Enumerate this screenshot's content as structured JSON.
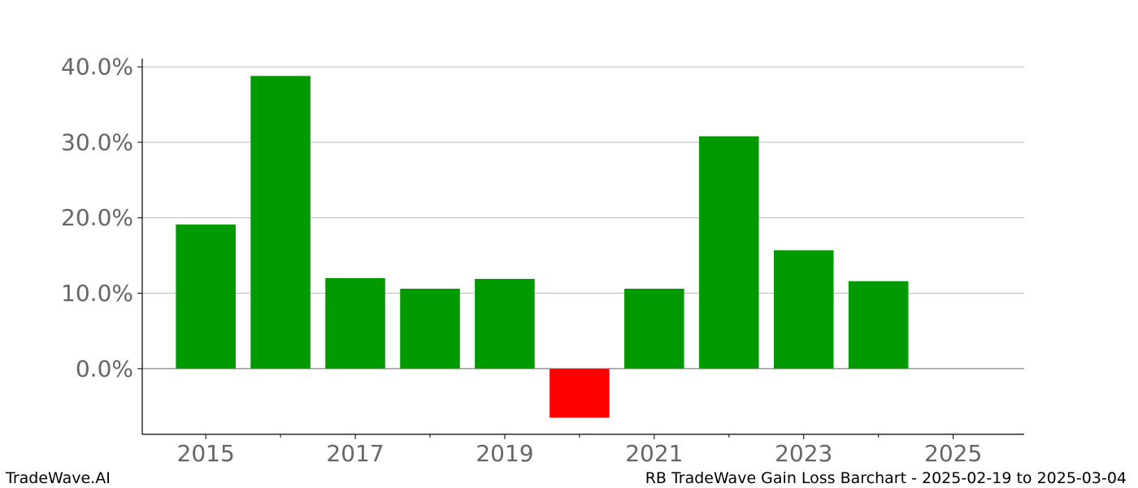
{
  "chart_data": {
    "type": "bar",
    "categories": [
      "2015",
      "2016",
      "2017",
      "2018",
      "2019",
      "2020",
      "2021",
      "2022",
      "2023",
      "2024"
    ],
    "values": [
      19.1,
      38.8,
      12.0,
      10.6,
      11.9,
      -6.5,
      10.6,
      30.8,
      15.7,
      11.6
    ],
    "x_tick_labels": [
      "2015",
      "2017",
      "2019",
      "2021",
      "2023",
      "2025"
    ],
    "x_ticks_minor": [
      "2016",
      "2018",
      "2020",
      "2022",
      "2024"
    ],
    "y_tick_labels": [
      "0.0%",
      "10.0%",
      "20.0%",
      "30.0%",
      "40.0%"
    ],
    "y_ticks": [
      0,
      10,
      20,
      30,
      40
    ],
    "ylim": [
      -8.7,
      41.1
    ],
    "xlim": [
      2014.15,
      2025.95
    ],
    "grid": true,
    "colors": {
      "positive": "#009900",
      "negative": "#ff0000",
      "grid": "#bbbbbb",
      "axis": "#000000",
      "tick_label": "#666666"
    },
    "title": "",
    "xlabel": "",
    "ylabel": ""
  },
  "footer": {
    "left": "TradeWave.AI",
    "right": "RB TradeWave Gain Loss Barchart - 2025-02-19 to 2025-03-04"
  }
}
